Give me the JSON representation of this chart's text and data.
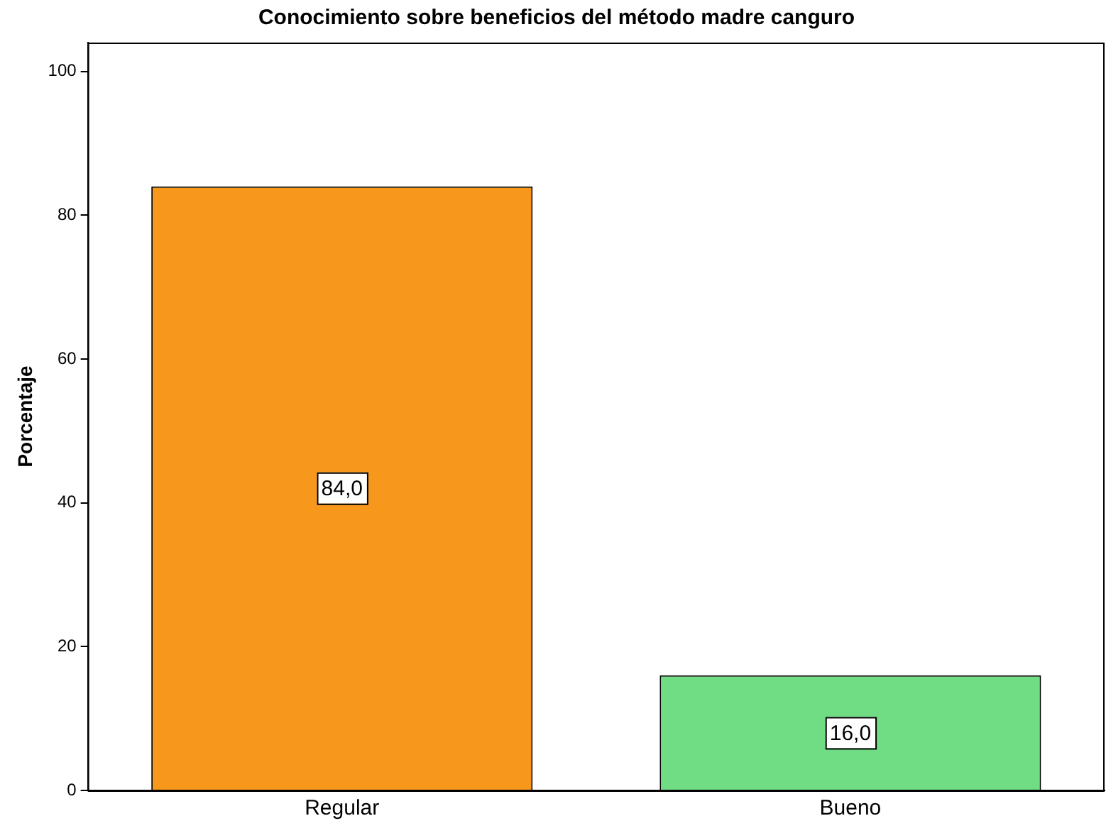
{
  "chart_data": {
    "type": "bar",
    "title": "Conocimiento sobre beneficios del método madre canguro",
    "ylabel": "Porcentaje",
    "categories": [
      "Regular",
      "Bueno"
    ],
    "values": [
      84,
      16
    ],
    "colors": [
      "#f7981d",
      "#70dc84"
    ],
    "value_labels": [
      "84,0",
      "16,0"
    ],
    "ylim": [
      0,
      104
    ],
    "yticks": [
      0,
      20,
      40,
      60,
      80,
      100
    ],
    "grid": false,
    "legend": false
  }
}
